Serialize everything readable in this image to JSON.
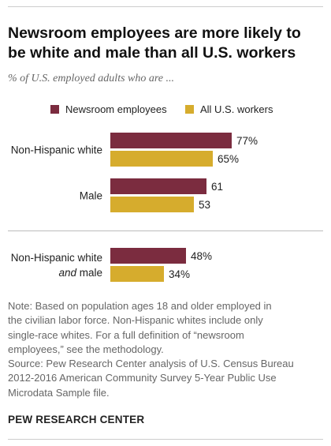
{
  "title_lines": [
    "Newsroom employees are more likely to",
    "be white and male than all U.S. workers"
  ],
  "subtitle": "% of U.S. employed adults who are ...",
  "colors": {
    "newsroom": "#7b2c3f",
    "all_workers": "#d6ac2d"
  },
  "legend": [
    {
      "label": "Newsroom employees",
      "color": "#7b2c3f"
    },
    {
      "label": "All U.S. workers",
      "color": "#d6ac2d"
    }
  ],
  "chart_data": {
    "type": "bar",
    "orientation": "horizontal",
    "categories": [
      "Non-Hispanic white",
      "Male",
      "Non-Hispanic white and male"
    ],
    "category_labels": [
      [
        "Non-Hispanic white"
      ],
      [
        "Male"
      ],
      [
        "Non-Hispanic white",
        "and male"
      ]
    ],
    "series": [
      {
        "name": "Newsroom employees",
        "values": [
          77,
          61,
          48
        ],
        "labels": [
          "77%",
          "61",
          "48%"
        ]
      },
      {
        "name": "All U.S. workers",
        "values": [
          65,
          53,
          34
        ],
        "labels": [
          "65%",
          "53",
          "34%"
        ]
      }
    ],
    "xlim": [
      0,
      100
    ],
    "grid": false,
    "legend": "top"
  },
  "note_lines": [
    "Note: Based on population ages 18 and older employed in",
    "the civilian labor force. Non-Hispanic whites include only",
    "single-race whites. For a full definition of “newsroom",
    "employees,” see the methodology.",
    "Source: Pew Research Center analysis of U.S. Census Bureau",
    "2012-2016 American Community Survey 5-Year Public Use",
    "Microdata Sample file."
  ],
  "footer": "PEW RESEARCH CENTER"
}
